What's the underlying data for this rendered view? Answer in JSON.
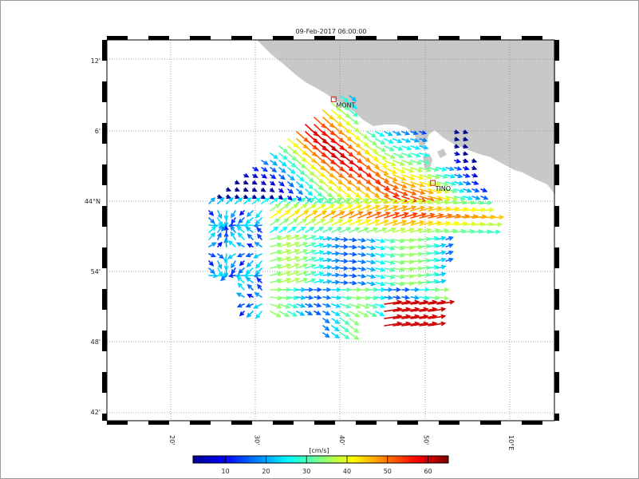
{
  "title": "09-Feb-2017 06:00:00",
  "lat_labels": [
    {
      "text": "12'",
      "lat": 44.2
    },
    {
      "text": "6'",
      "lat": 44.1
    },
    {
      "text": "44°N",
      "lat": 44.0
    },
    {
      "text": "54'",
      "lat": 43.9
    },
    {
      "text": "48'",
      "lat": 43.8
    },
    {
      "text": "42'",
      "lat": 43.7
    }
  ],
  "lon_labels": [
    {
      "text": "20'",
      "lon": 9.333
    },
    {
      "text": "30'",
      "lon": 9.5
    },
    {
      "text": "40'",
      "lon": 9.667
    },
    {
      "text": "50'",
      "lon": 9.833
    },
    {
      "text": "10°E",
      "lon": 10.0
    }
  ],
  "stations": [
    {
      "name": "MONT",
      "lat": 44.145,
      "lon": 9.655
    },
    {
      "name": "TINO",
      "lat": 44.026,
      "lon": 9.85
    }
  ],
  "colorbar": {
    "unit": "[cm/s]",
    "ticks": [
      10,
      20,
      30,
      40,
      50,
      60
    ],
    "min": 2,
    "max": 65
  },
  "colors": {
    "land": "#c8c8c8",
    "frame": "#000000",
    "grid": "#8a8a8a",
    "station": "#e0362f"
  },
  "chart_data": {
    "type": "quiver",
    "quantity": "surface current speed",
    "unit": "cm/s",
    "lat_range": [
      43.685,
      44.225
    ],
    "lon_range": [
      9.11,
      10.115
    ],
    "grid": true
  }
}
